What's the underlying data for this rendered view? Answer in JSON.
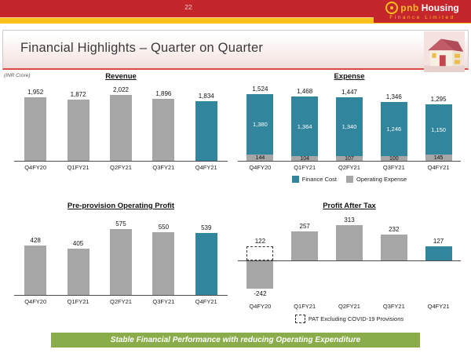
{
  "header": {
    "page_number": "22",
    "logo": {
      "brand_primary": "pnb",
      "brand_secondary": "Housing",
      "subtitle": "Finance Limited"
    }
  },
  "title_bar": {
    "title": "Financial Highlights – Quarter on Quarter"
  },
  "unit_label": "(INR Crore)",
  "colors": {
    "brand_red": "#c4262c",
    "brand_gold": "#fdc01c",
    "accent_teal": "#31859C",
    "bar_gray": "#A6A6A6",
    "banner_green": "#8bac4a",
    "title_rule_red": "#d94a43"
  },
  "chart_data": [
    {
      "type": "bar",
      "title": "Revenue",
      "categories": [
        "Q4FY20",
        "Q1FY21",
        "Q2FY21",
        "Q3FY21",
        "Q4FY21"
      ],
      "values": [
        1952,
        1872,
        2022,
        1896,
        1834
      ],
      "value_labels": [
        "1,952",
        "1,872",
        "2,022",
        "1,896",
        "1,834"
      ],
      "highlight_last": true,
      "ylim": [
        0,
        2022
      ],
      "grid": false
    },
    {
      "type": "stacked-bar",
      "title": "Expense",
      "categories": [
        "Q4FY20",
        "Q1FY21",
        "Q2FY21",
        "Q3FY21",
        "Q4FY21"
      ],
      "series": [
        {
          "name": "Finance Cost",
          "color_key": "accent_teal",
          "values": [
            1380,
            1364,
            1340,
            1246,
            1150
          ],
          "value_labels": [
            "1,380",
            "1,364",
            "1,340",
            "1,246",
            "1,150"
          ]
        },
        {
          "name": "Operating Expense",
          "color_key": "bar_gray",
          "values": [
            144,
            104,
            107,
            100,
            145
          ],
          "value_labels": [
            "144",
            "104",
            "107",
            "100",
            "145"
          ]
        }
      ],
      "totals": [
        1524,
        1468,
        1447,
        1346,
        1295
      ],
      "total_labels": [
        "1,524",
        "1,468",
        "1,447",
        "1,346",
        "1,295"
      ],
      "legend_position": "bottom",
      "ylim": [
        0,
        1524
      ],
      "grid": false
    },
    {
      "type": "bar",
      "title": "Pre-provision Operating Profit",
      "categories": [
        "Q4FY20",
        "Q1FY21",
        "Q2FY21",
        "Q3FY21",
        "Q4FY21"
      ],
      "values": [
        428,
        405,
        575,
        550,
        539
      ],
      "value_labels": [
        "428",
        "405",
        "575",
        "550",
        "539"
      ],
      "highlight_last": true,
      "ylim": [
        0,
        575
      ],
      "grid": false
    },
    {
      "type": "bar-negative",
      "title": "Profit After Tax",
      "categories": [
        "Q4FY20",
        "Q1FY21",
        "Q2FY21",
        "Q3FY21",
        "Q4FY21"
      ],
      "values": [
        -242,
        257,
        313,
        232,
        127
      ],
      "value_labels": [
        "-242",
        "257",
        "313",
        "232",
        "127"
      ],
      "dashed_value": 122,
      "dashed_label": "122",
      "legend": "PAT Excluding COVID-19 Provisions",
      "highlight_last": true,
      "ylim": [
        -242,
        313
      ],
      "grid": false
    }
  ],
  "banner": {
    "text": "Stable Financial Performance with reducing Operating Expenditure"
  }
}
